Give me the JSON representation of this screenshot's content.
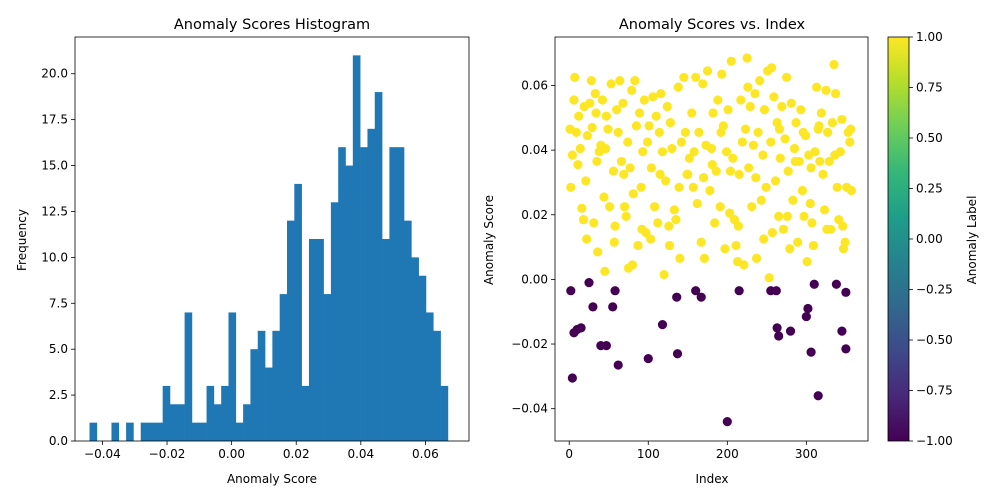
{
  "chart_data": [
    {
      "type": "bar",
      "title": "Anomaly Scores Histogram",
      "xlabel": "Anomaly Score",
      "ylabel": "Frequency",
      "xlim": [
        -0.0485,
        0.0735
      ],
      "ylim": [
        0,
        22
      ],
      "xticks": [
        -0.04,
        -0.02,
        0.0,
        0.02,
        0.04,
        0.06
      ],
      "xtick_labels": [
        "−0.04",
        "−0.02",
        "0.00",
        "0.02",
        "0.04",
        "0.06"
      ],
      "yticks": [
        0,
        2.5,
        5,
        7.5,
        10,
        12.5,
        15,
        17.5,
        20
      ],
      "ytick_labels": [
        "0.0",
        "2.5",
        "5.0",
        "7.5",
        "10.0",
        "12.5",
        "15.0",
        "17.5",
        "20.0"
      ],
      "bar_color": "#1f77b4",
      "bin_start": -0.044,
      "bin_width": 0.0022647,
      "values": [
        1,
        0,
        0,
        1,
        0,
        1,
        0,
        1,
        1,
        1,
        3,
        2,
        2,
        7,
        1,
        1,
        3,
        2,
        3,
        7,
        1,
        2,
        5,
        6,
        4,
        6,
        8,
        12,
        14,
        3,
        11,
        11,
        8,
        13,
        16,
        15,
        21,
        16,
        17,
        19,
        11,
        16,
        16,
        12,
        10,
        9,
        7,
        6,
        3
      ]
    },
    {
      "type": "scatter",
      "title": "Anomaly Scores vs. Index",
      "xlabel": "Index",
      "ylabel": "Anomaly Score",
      "xlim": [
        -18,
        378
      ],
      "ylim": [
        -0.05,
        0.075
      ],
      "xticks": [
        0,
        100,
        200,
        300
      ],
      "xtick_labels": [
        "0",
        "100",
        "200",
        "300"
      ],
      "yticks": [
        -0.04,
        -0.02,
        0.0,
        0.02,
        0.04,
        0.06
      ],
      "ytick_labels": [
        "−0.04",
        "−0.02",
        "0.00",
        "0.02",
        "0.04",
        "0.06"
      ],
      "normal_color": "#fde725",
      "anomaly_color": "#440154",
      "anomalies": [
        [
          2,
          -0.0035
        ],
        [
          4,
          -0.0305
        ],
        [
          6,
          -0.0165
        ],
        [
          10,
          -0.0155
        ],
        [
          15,
          -0.015
        ],
        [
          25,
          -0.001
        ],
        [
          30,
          -0.0085
        ],
        [
          40,
          -0.0205
        ],
        [
          47,
          -0.0205
        ],
        [
          55,
          -0.0085
        ],
        [
          58,
          -0.0035
        ],
        [
          62,
          -0.0265
        ],
        [
          100,
          -0.0245
        ],
        [
          118,
          -0.014
        ],
        [
          136,
          -0.0055
        ],
        [
          137,
          -0.023
        ],
        [
          160,
          -0.0035
        ],
        [
          167,
          -0.0055
        ],
        [
          200,
          -0.044
        ],
        [
          215,
          -0.0035
        ],
        [
          255,
          -0.0035
        ],
        [
          262,
          -0.0035
        ],
        [
          263,
          -0.015
        ],
        [
          265,
          -0.0175
        ],
        [
          280,
          -0.016
        ],
        [
          300,
          -0.0115
        ],
        [
          302,
          -0.009
        ],
        [
          306,
          -0.0225
        ],
        [
          310,
          -0.0015
        ],
        [
          315,
          -0.036
        ],
        [
          338,
          -0.0015
        ],
        [
          345,
          -0.016
        ],
        [
          350,
          -0.004
        ],
        [
          350,
          -0.0215
        ]
      ],
      "normal_sample": [
        [
          1,
          0.0465
        ],
        [
          2,
          0.0285
        ],
        [
          4,
          0.0385
        ],
        [
          6,
          0.0555
        ],
        [
          7,
          0.0625
        ],
        [
          9,
          0.0455
        ],
        [
          11,
          0.0355
        ],
        [
          14,
          0.0405
        ],
        [
          16,
          0.022
        ],
        [
          18,
          0.0185
        ],
        [
          19,
          0.0535
        ],
        [
          21,
          0.0305
        ],
        [
          23,
          0.0445
        ],
        [
          26,
          0.0545
        ],
        [
          28,
          0.0615
        ],
        [
          29,
          0.047
        ],
        [
          31,
          0.0175
        ],
        [
          33,
          0.0575
        ],
        [
          35,
          0.0365
        ],
        [
          36,
          0.0085
        ],
        [
          38,
          0.0395
        ],
        [
          40,
          0.0415
        ],
        [
          42,
          0.0555
        ],
        [
          44,
          0.0255
        ],
        [
          45,
          0.0025
        ],
        [
          47,
          0.0505
        ],
        [
          49,
          0.0465
        ],
        [
          51,
          0.0225
        ],
        [
          53,
          0.0605
        ],
        [
          56,
          0.0335
        ],
        [
          58,
          0.0165
        ],
        [
          60,
          0.0525
        ],
        [
          62,
          0.0455
        ],
        [
          64,
          0.0615
        ],
        [
          66,
          0.0365
        ],
        [
          68,
          0.0545
        ],
        [
          70,
          0.0225
        ],
        [
          72,
          0.0195
        ],
        [
          74,
          0.0425
        ],
        [
          75,
          0.0035
        ],
        [
          77,
          0.0345
        ],
        [
          79,
          0.0585
        ],
        [
          81,
          0.0265
        ],
        [
          83,
          0.0615
        ],
        [
          85,
          0.0475
        ],
        [
          87,
          0.0105
        ],
        [
          89,
          0.0515
        ],
        [
          91,
          0.0285
        ],
        [
          93,
          0.0395
        ],
        [
          95,
          0.0555
        ],
        [
          97,
          0.0145
        ],
        [
          99,
          0.0425
        ],
        [
          101,
          0.0475
        ],
        [
          104,
          0.0345
        ],
        [
          106,
          0.0565
        ],
        [
          108,
          0.0225
        ],
        [
          110,
          0.0505
        ],
        [
          112,
          0.0175
        ],
        [
          114,
          0.0455
        ],
        [
          116,
          0.0575
        ],
        [
          118,
          0.0395
        ],
        [
          120,
          0.0015
        ],
        [
          122,
          0.0305
        ],
        [
          124,
          0.0535
        ],
        [
          126,
          0.0165
        ],
        [
          128,
          0.0485
        ],
        [
          130,
          0.0405
        ],
        [
          133,
          0.0215
        ],
        [
          135,
          0.0185
        ],
        [
          138,
          0.0595
        ],
        [
          140,
          0.0065
        ],
        [
          142,
          0.0425
        ],
        [
          145,
          0.0625
        ],
        [
          147,
          0.0455
        ],
        [
          150,
          0.0325
        ],
        [
          152,
          0.0375
        ],
        [
          155,
          0.0515
        ],
        [
          157,
          0.0285
        ],
        [
          160,
          0.0625
        ],
        [
          162,
          0.0235
        ],
        [
          164,
          0.0455
        ],
        [
          167,
          0.0115
        ],
        [
          169,
          0.0605
        ],
        [
          171,
          0.0065
        ],
        [
          173,
          0.0415
        ],
        [
          175,
          0.0645
        ],
        [
          178,
          0.0275
        ],
        [
          180,
          0.0405
        ],
        [
          182,
          0.0515
        ],
        [
          184,
          0.0175
        ],
        [
          186,
          0.0335
        ],
        [
          188,
          0.0555
        ],
        [
          191,
          0.0225
        ],
        [
          193,
          0.0635
        ],
        [
          195,
          0.0475
        ],
        [
          197,
          0.0095
        ],
        [
          199,
          0.0395
        ],
        [
          201,
          0.0525
        ],
        [
          203,
          0.0205
        ],
        [
          205,
          0.0675
        ],
        [
          207,
          0.0375
        ],
        [
          209,
          0.0185
        ],
        [
          211,
          0.0105
        ],
        [
          213,
          0.0055
        ],
        [
          215,
          0.0325
        ],
        [
          217,
          0.0555
        ],
        [
          219,
          0.0425
        ],
        [
          221,
          0.0045
        ],
        [
          223,
          0.0465
        ],
        [
          225,
          0.0685
        ],
        [
          227,
          0.0345
        ],
        [
          229,
          0.0535
        ],
        [
          231,
          0.0225
        ],
        [
          233,
          0.0415
        ],
        [
          235,
          0.0575
        ],
        [
          237,
          0.0065
        ],
        [
          239,
          0.0455
        ],
        [
          241,
          0.0615
        ],
        [
          243,
          0.0245
        ],
        [
          245,
          0.0385
        ],
        [
          247,
          0.0525
        ],
        [
          249,
          0.0285
        ],
        [
          251,
          0.0645
        ],
        [
          253,
          0.0005
        ],
        [
          255,
          0.0425
        ],
        [
          257,
          0.0145
        ],
        [
          259,
          0.0565
        ],
        [
          261,
          0.0305
        ],
        [
          263,
          0.0485
        ],
        [
          265,
          0.0195
        ],
        [
          267,
          0.0375
        ],
        [
          269,
          0.0535
        ],
        [
          271,
          0.0155
        ],
        [
          273,
          0.0435
        ],
        [
          275,
          0.0625
        ],
        [
          277,
          0.0335
        ],
        [
          279,
          0.0095
        ],
        [
          281,
          0.0545
        ],
        [
          283,
          0.0245
        ],
        [
          285,
          0.0405
        ],
        [
          287,
          0.0485
        ],
        [
          289,
          0.0115
        ],
        [
          291,
          0.0365
        ],
        [
          293,
          0.0525
        ],
        [
          295,
          0.0275
        ],
        [
          297,
          0.0195
        ],
        [
          299,
          0.0445
        ],
        [
          301,
          0.0055
        ],
        [
          303,
          0.0385
        ],
        [
          305,
          0.0235
        ],
        [
          307,
          0.0175
        ],
        [
          309,
          0.0105
        ],
        [
          311,
          0.0395
        ],
        [
          313,
          0.0595
        ],
        [
          315,
          0.0465
        ],
        [
          317,
          0.0365
        ],
        [
          319,
          0.0515
        ],
        [
          321,
          0.0325
        ],
        [
          323,
          0.0215
        ],
        [
          325,
          0.0585
        ],
        [
          327,
          0.0455
        ],
        [
          329,
          0.0365
        ],
        [
          331,
          0.0155
        ],
        [
          333,
          0.0485
        ],
        [
          335,
          0.0665
        ],
        [
          337,
          0.0575
        ],
        [
          339,
          0.0285
        ],
        [
          341,
          0.0185
        ],
        [
          343,
          0.0395
        ],
        [
          345,
          0.0495
        ],
        [
          347,
          0.0095
        ],
        [
          349,
          0.0115
        ],
        [
          351,
          0.0285
        ],
        [
          353,
          0.0455
        ],
        [
          355,
          0.0425
        ],
        [
          357,
          0.0275
        ],
        [
          12,
          0.0505
        ],
        [
          22,
          0.0125
        ],
        [
          34,
          0.0515
        ],
        [
          46,
          0.0405
        ],
        [
          57,
          0.0115
        ],
        [
          69,
          0.0325
        ],
        [
          80,
          0.0045
        ],
        [
          92,
          0.0155
        ],
        [
          103,
          0.0125
        ],
        [
          115,
          0.0325
        ],
        [
          127,
          0.0105
        ],
        [
          139,
          0.0285
        ],
        [
          149,
          0.0325
        ],
        [
          158,
          0.0395
        ],
        [
          170,
          0.0315
        ],
        [
          181,
          0.0355
        ],
        [
          192,
          0.0455
        ],
        [
          204,
          0.0335
        ],
        [
          214,
          0.0165
        ],
        [
          226,
          0.0595
        ],
        [
          236,
          0.0315
        ],
        [
          246,
          0.0125
        ],
        [
          256,
          0.0655
        ],
        [
          266,
          0.0465
        ],
        [
          276,
          0.0195
        ],
        [
          286,
          0.0365
        ],
        [
          296,
          0.0455
        ],
        [
          306,
          0.0345
        ],
        [
          316,
          0.0475
        ],
        [
          326,
          0.0155
        ],
        [
          336,
          0.0385
        ],
        [
          346,
          0.0165
        ],
        [
          356,
          0.0465
        ]
      ]
    }
  ],
  "colorbar": {
    "label": "Anomaly Label",
    "ticks": [
      -1.0,
      -0.75,
      -0.5,
      -0.25,
      0.0,
      0.25,
      0.5,
      0.75,
      1.0
    ],
    "tick_labels": [
      "−1.00",
      "−0.75",
      "−0.50",
      "−0.25",
      "0.00",
      "0.25",
      "0.50",
      "0.75",
      "1.00"
    ],
    "colormap": [
      "#440154",
      "#482878",
      "#3e4989",
      "#31688e",
      "#26828e",
      "#1f9e89",
      "#35b779",
      "#6ece58",
      "#b5de2b",
      "#fde725"
    ]
  }
}
